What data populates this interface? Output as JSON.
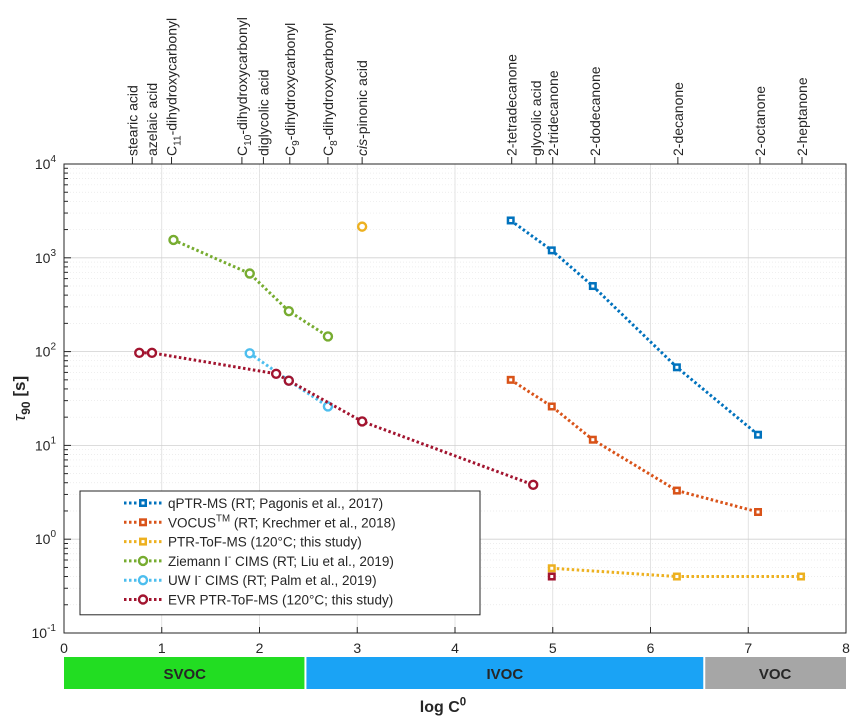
{
  "chart_data": {
    "type": "scatter",
    "title": "",
    "xlabel": "log C",
    "xlabel_sup": "0",
    "ylabel": "τ",
    "ylabel_sub": "90",
    "ylabel_unit": "[s]",
    "xlim": [
      0,
      8
    ],
    "ylim": [
      0.1,
      10000
    ],
    "yscale": "log",
    "grid": true,
    "legend_position": "bottom-left",
    "x_ticks": [
      0,
      1,
      2,
      3,
      4,
      5,
      6,
      7,
      8
    ],
    "y_ticks": [
      {
        "value": 0.1,
        "base": "10",
        "exp": "-1"
      },
      {
        "value": 1,
        "base": "10",
        "exp": "0"
      },
      {
        "value": 10,
        "base": "10",
        "exp": "1"
      },
      {
        "value": 100,
        "base": "10",
        "exp": "2"
      },
      {
        "value": 1000,
        "base": "10",
        "exp": "3"
      },
      {
        "value": 10000,
        "base": "10",
        "exp": "4"
      }
    ],
    "top_labels": [
      {
        "x": 0.7,
        "parts": [
          {
            "t": "stearic acid"
          }
        ]
      },
      {
        "x": 0.9,
        "parts": [
          {
            "t": "azelaic acid"
          }
        ]
      },
      {
        "x": 1.1,
        "parts": [
          {
            "t": "C"
          },
          {
            "t": "11",
            "sub": true
          },
          {
            "t": "-dihydroxycarbonyl"
          }
        ]
      },
      {
        "x": 1.82,
        "parts": [
          {
            "t": "C"
          },
          {
            "t": "10",
            "sub": true
          },
          {
            "t": "-dihydroxycarbonyl"
          }
        ]
      },
      {
        "x": 2.04,
        "parts": [
          {
            "t": "diglycolic acid"
          }
        ]
      },
      {
        "x": 2.31,
        "parts": [
          {
            "t": "C"
          },
          {
            "t": "9",
            "sub": true
          },
          {
            "t": "-dihydroxycarbonyl"
          }
        ]
      },
      {
        "x": 2.7,
        "parts": [
          {
            "t": "C"
          },
          {
            "t": "8",
            "sub": true
          },
          {
            "t": "-dihydroxycarbonyl"
          }
        ]
      },
      {
        "x": 3.05,
        "parts": [
          {
            "t": "cis",
            "italic": true
          },
          {
            "t": "-pinonic acid"
          }
        ]
      },
      {
        "x": 4.58,
        "parts": [
          {
            "t": "2-tetradecanone"
          }
        ]
      },
      {
        "x": 4.83,
        "parts": [
          {
            "t": "glycolic acid"
          }
        ]
      },
      {
        "x": 5.0,
        "parts": [
          {
            "t": "2-tridecanone"
          }
        ]
      },
      {
        "x": 5.43,
        "parts": [
          {
            "t": "2-dodecanone"
          }
        ]
      },
      {
        "x": 6.28,
        "parts": [
          {
            "t": "2-decanone"
          }
        ]
      },
      {
        "x": 7.12,
        "parts": [
          {
            "t": "2-octanone"
          }
        ]
      },
      {
        "x": 7.55,
        "parts": [
          {
            "t": "2-heptanone"
          }
        ]
      }
    ],
    "series": [
      {
        "name": "qPTR-MS (RT; Pagonis et al., 2017)",
        "name_parts": [
          {
            "t": "qPTR-MS (RT; Pagonis et al., 2017)"
          }
        ],
        "color": "#0072BD",
        "marker": "square",
        "x": [
          4.57,
          4.99,
          5.41,
          6.27,
          7.1
        ],
        "y": [
          2500,
          1200,
          500,
          68,
          13
        ]
      },
      {
        "name": "VOCUSTM (RT; Krechmer et al., 2018)",
        "name_parts": [
          {
            "t": "VOCUS"
          },
          {
            "t": "TM",
            "sup": true
          },
          {
            "t": " (RT; Krechmer et al., 2018)"
          }
        ],
        "color": "#D95319",
        "marker": "square",
        "x": [
          4.57,
          4.99,
          5.41,
          6.27,
          7.1
        ],
        "y": [
          50,
          26,
          11.5,
          3.3,
          1.95
        ]
      },
      {
        "name": "PTR-ToF-MS (120°C; this study)",
        "name_parts": [
          {
            "t": "PTR-ToF-MS (120°C; this study)"
          }
        ],
        "color": "#EDB120",
        "marker": "square",
        "x": [
          4.99,
          6.27,
          7.54
        ],
        "y": [
          0.49,
          0.4,
          0.4
        ]
      },
      {
        "name": "Ziemann I- CIMS (RT; Liu et al., 2019)",
        "name_parts": [
          {
            "t": "Ziemann I"
          },
          {
            "t": "-",
            "sup": true
          },
          {
            "t": " CIMS (RT; Liu et al., 2019)"
          }
        ],
        "color": "#77AC30",
        "marker": "circle",
        "x": [
          1.12,
          1.9,
          2.3,
          2.7
        ],
        "y": [
          1550,
          680,
          270,
          145
        ]
      },
      {
        "name": "UW I- CIMS (RT; Palm et al., 2019)",
        "name_parts": [
          {
            "t": "UW I"
          },
          {
            "t": "-",
            "sup": true
          },
          {
            "t": " CIMS (RT; Palm et al., 2019)"
          }
        ],
        "color": "#4DBEEE",
        "marker": "circle",
        "x": [
          1.9,
          2.3,
          2.7
        ],
        "y": [
          96,
          49,
          26
        ]
      },
      {
        "name": "EVR PTR-ToF-MS (120°C; this study)",
        "name_parts": [
          {
            "t": "EVR PTR-ToF-MS (120°C; this study)"
          }
        ],
        "color": "#A2142F",
        "marker": "circle",
        "x": [
          0.77,
          0.9,
          2.17,
          2.3,
          3.05,
          4.8
        ],
        "y": [
          97,
          97,
          58,
          49,
          18,
          3.8
        ]
      }
    ],
    "extra_points": [
      {
        "x": 3.05,
        "y": 2150,
        "color": "#EDB120",
        "marker": "circle"
      },
      {
        "x": 4.99,
        "y": 0.4,
        "color": "#A2142F",
        "marker": "square"
      }
    ],
    "category_bands": [
      {
        "label": "SVOC",
        "from": 0,
        "to": 2.47,
        "color": "#22DD22"
      },
      {
        "label": "IVOC",
        "from": 2.47,
        "to": 6.55,
        "color": "#1AA3F5"
      },
      {
        "label": "VOC",
        "from": 6.55,
        "to": 8,
        "color": "#A6A6A6"
      }
    ]
  }
}
